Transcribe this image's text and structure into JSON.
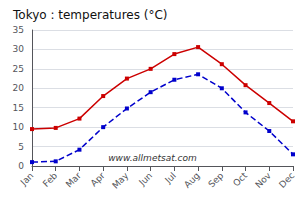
{
  "chart_data": {
    "type": "line",
    "title": "Tokyo : temperatures (°C)",
    "categories": [
      "Jan",
      "Feb",
      "Mar",
      "Apr",
      "May",
      "Jun",
      "Jul",
      "Aug",
      "Sep",
      "Oct",
      "Nov",
      "Dec"
    ],
    "series": [
      {
        "color": "#cc0000",
        "marker": "square",
        "line_style": "solid",
        "values": [
          9.5,
          9.8,
          12.2,
          18.0,
          22.5,
          25.0,
          28.8,
          30.6,
          26.2,
          20.8,
          16.2,
          11.5
        ]
      },
      {
        "color": "#0000cc",
        "marker": "square",
        "line_style": "dashed",
        "values": [
          1.0,
          1.2,
          4.2,
          10.0,
          14.8,
          19.0,
          22.2,
          23.6,
          20.0,
          13.8,
          9.0,
          3.0
        ]
      }
    ],
    "ylim": [
      0,
      35
    ],
    "yticks": [
      0,
      5,
      10,
      15,
      20,
      25,
      30,
      35
    ],
    "grid": true,
    "annotation": "www.allmetsat.com"
  }
}
